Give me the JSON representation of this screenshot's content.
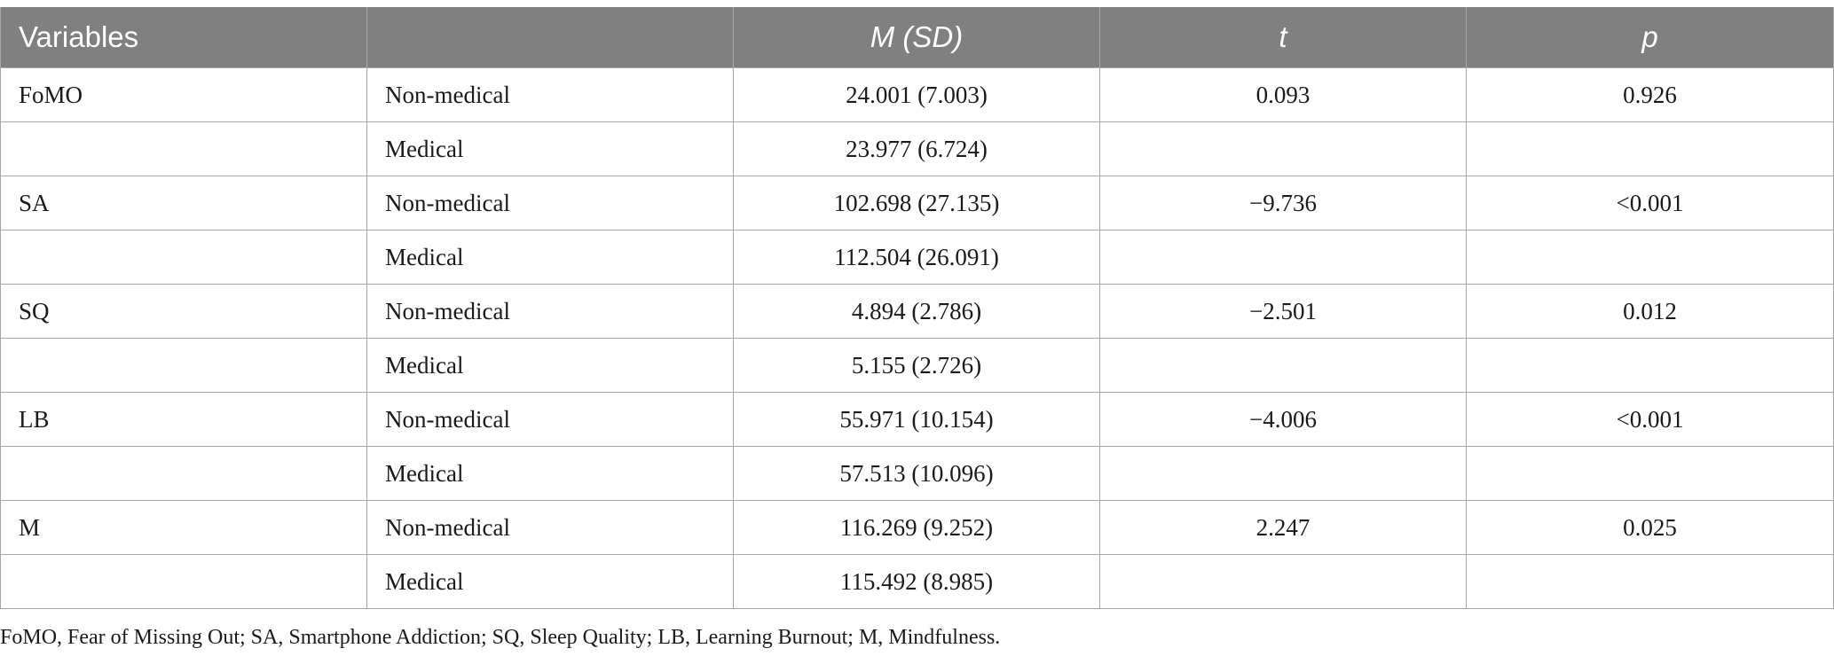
{
  "table": {
    "headers": [
      {
        "text": "Variables",
        "italic": false
      },
      {
        "text": "",
        "italic": false
      },
      {
        "text": "M (SD)",
        "italic": true
      },
      {
        "text": "t",
        "italic": true
      },
      {
        "text": "p",
        "italic": true
      }
    ],
    "rows": [
      {
        "variable": "FoMO",
        "group": "Non-medical",
        "msd": "24.001 (7.003)",
        "t": "0.093",
        "p": "0.926"
      },
      {
        "variable": "",
        "group": "Medical",
        "msd": "23.977 (6.724)",
        "t": "",
        "p": ""
      },
      {
        "variable": "SA",
        "group": "Non-medical",
        "msd": "102.698 (27.135)",
        "t": "−9.736",
        "p": "<0.001"
      },
      {
        "variable": "",
        "group": "Medical",
        "msd": "112.504 (26.091)",
        "t": "",
        "p": ""
      },
      {
        "variable": "SQ",
        "group": "Non-medical",
        "msd": "4.894 (2.786)",
        "t": "−2.501",
        "p": "0.012"
      },
      {
        "variable": "",
        "group": "Medical",
        "msd": "5.155 (2.726)",
        "t": "",
        "p": ""
      },
      {
        "variable": "LB",
        "group": "Non-medical",
        "msd": "55.971 (10.154)",
        "t": "−4.006",
        "p": "<0.001"
      },
      {
        "variable": "",
        "group": "Medical",
        "msd": "57.513 (10.096)",
        "t": "",
        "p": ""
      },
      {
        "variable": "M",
        "group": "Non-medical",
        "msd": "116.269 (9.252)",
        "t": "2.247",
        "p": "0.025"
      },
      {
        "variable": "",
        "group": "Medical",
        "msd": "115.492 (8.985)",
        "t": "",
        "p": ""
      }
    ]
  },
  "footnote": "FoMO, Fear of Missing Out; SA, Smartphone Addiction; SQ, Sleep Quality; LB, Learning Burnout; M, Mindfulness.",
  "colors": {
    "header_bg": "#808080",
    "header_text": "#ffffff",
    "grid": "#a6a6a6"
  }
}
